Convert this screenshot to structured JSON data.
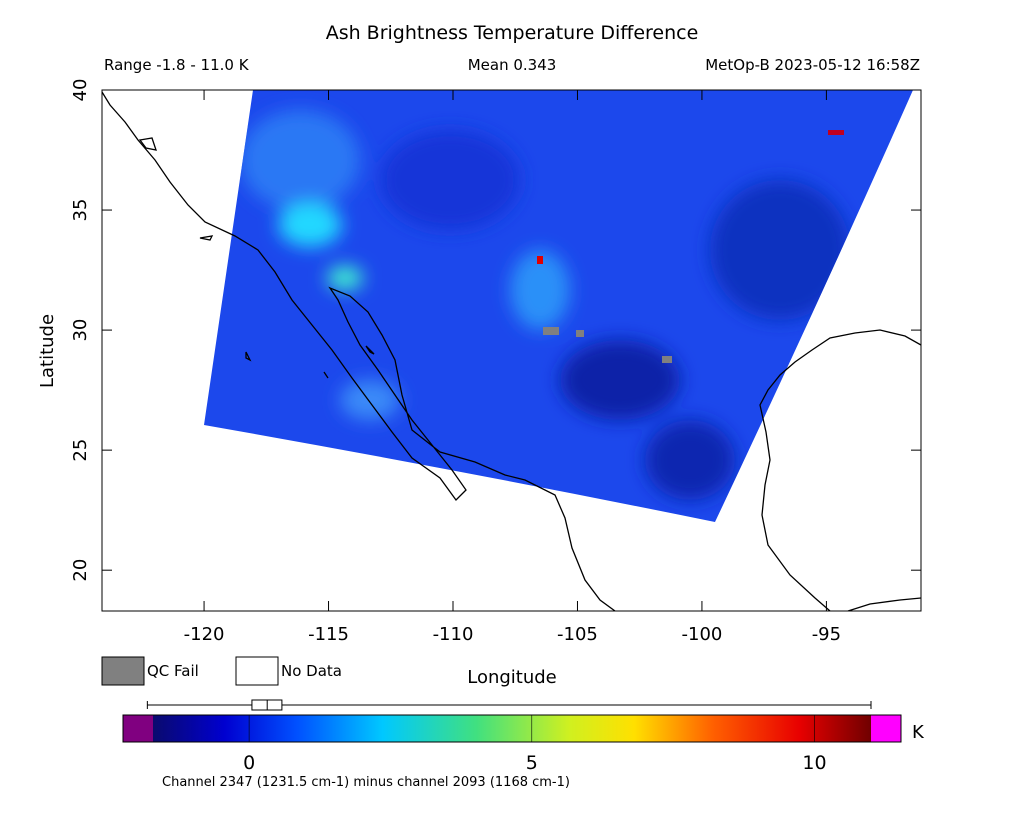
{
  "title": "Ash Brightness Temperature Difference",
  "range_text": "Range -1.8 - 11.0 K",
  "mean_text": "Mean 0.343",
  "satellite_text": "MetOp-B 2023-05-12 16:58Z",
  "map": {
    "xlabel": "Longitude",
    "ylabel": "Latitude",
    "xlim": [
      -124.1,
      -91.2
    ],
    "ylim": [
      18.3,
      40
    ],
    "xticks": [
      -120,
      -115,
      -110,
      -105,
      -100,
      -95
    ],
    "yticks": [
      20,
      25,
      30,
      35,
      40
    ]
  },
  "legend": [
    {
      "label": "QC Fail",
      "color": "#808080"
    },
    {
      "label": "No Data",
      "color": "#ffffff"
    }
  ],
  "colorbar": {
    "lim": [
      -1.7,
      11.0
    ],
    "ticks": [
      0,
      5,
      10
    ],
    "unit": "K",
    "caption": "Channel 2347 (1231.5 cm-1) minus channel 2093 (1168 cm-1)",
    "box": {
      "min": -1.8,
      "q1": 0.05,
      "median": 0.32,
      "q3": 0.58,
      "max": 11.0
    }
  }
}
